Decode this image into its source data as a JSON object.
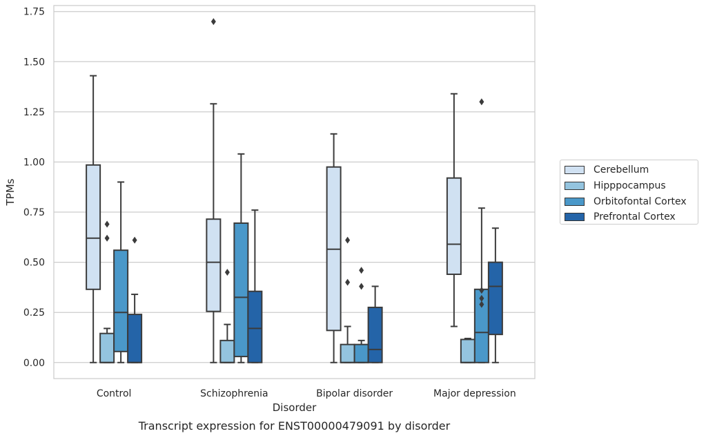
{
  "chart_data": {
    "type": "box",
    "title": "Transcript expression for ENST00000479091 by disorder",
    "xlabel": "Disorder",
    "ylabel": "TPMs",
    "ylim": [
      -0.08,
      1.78
    ],
    "y_ticks": [
      0.0,
      0.25,
      0.5,
      0.75,
      1.0,
      1.25,
      1.5,
      1.75
    ],
    "y_tick_labels": [
      "0.00",
      "0.25",
      "0.50",
      "0.75",
      "1.00",
      "1.25",
      "1.50",
      "1.75"
    ],
    "categories": [
      "Control",
      "Schizophrenia",
      "Bipolar disorder",
      "Major depression"
    ],
    "grid": true,
    "legend_position": "right",
    "series": [
      {
        "name": "Cerebellum",
        "color": "#d0e1f2",
        "boxes": [
          {
            "whisker_low": 0.0,
            "q1": 0.365,
            "median": 0.62,
            "q3": 0.985,
            "whisker_high": 1.43,
            "outliers": []
          },
          {
            "whisker_low": 0.0,
            "q1": 0.255,
            "median": 0.5,
            "q3": 0.715,
            "whisker_high": 1.29,
            "outliers": [
              1.7
            ]
          },
          {
            "whisker_low": 0.0,
            "q1": 0.16,
            "median": 0.565,
            "q3": 0.975,
            "whisker_high": 1.14,
            "outliers": []
          },
          {
            "whisker_low": 0.18,
            "q1": 0.44,
            "median": 0.59,
            "q3": 0.92,
            "whisker_high": 1.34,
            "outliers": []
          }
        ]
      },
      {
        "name": "Hipppocampus",
        "color": "#94c4df",
        "boxes": [
          {
            "whisker_low": 0.0,
            "q1": 0.0,
            "median": 0.0,
            "q3": 0.145,
            "whisker_high": 0.17,
            "outliers": [
              0.62,
              0.69
            ]
          },
          {
            "whisker_low": 0.0,
            "q1": 0.0,
            "median": 0.0,
            "q3": 0.11,
            "whisker_high": 0.19,
            "outliers": [
              0.45
            ]
          },
          {
            "whisker_low": 0.0,
            "q1": 0.0,
            "median": 0.0,
            "q3": 0.09,
            "whisker_high": 0.18,
            "outliers": [
              0.4,
              0.61
            ]
          },
          {
            "whisker_low": 0.0,
            "q1": 0.0,
            "median": 0.0,
            "q3": 0.115,
            "whisker_high": 0.12,
            "outliers": []
          }
        ]
      },
      {
        "name": "Orbitofontal Cortex",
        "color": "#4a98c9",
        "boxes": [
          {
            "whisker_low": 0.0,
            "q1": 0.055,
            "median": 0.25,
            "q3": 0.56,
            "whisker_high": 0.9,
            "outliers": []
          },
          {
            "whisker_low": 0.0,
            "q1": 0.03,
            "median": 0.325,
            "q3": 0.695,
            "whisker_high": 1.04,
            "outliers": []
          },
          {
            "whisker_low": 0.0,
            "q1": 0.0,
            "median": 0.0,
            "q3": 0.09,
            "whisker_high": 0.11,
            "outliers": [
              0.38,
              0.46
            ]
          },
          {
            "whisker_low": 0.0,
            "q1": 0.0,
            "median": 0.15,
            "q3": 0.365,
            "whisker_high": 0.77,
            "outliers": [
              0.29,
              0.32,
              0.36,
              1.3
            ]
          }
        ]
      },
      {
        "name": "Prefrontal Cortex",
        "color": "#2464a8",
        "boxes": [
          {
            "whisker_low": 0.0,
            "q1": 0.0,
            "median": 0.0,
            "q3": 0.24,
            "whisker_high": 0.34,
            "outliers": [
              0.61
            ]
          },
          {
            "whisker_low": 0.0,
            "q1": 0.0,
            "median": 0.17,
            "q3": 0.355,
            "whisker_high": 0.76,
            "outliers": []
          },
          {
            "whisker_low": 0.0,
            "q1": 0.0,
            "median": 0.065,
            "q3": 0.275,
            "whisker_high": 0.38,
            "outliers": []
          },
          {
            "whisker_low": 0.0,
            "q1": 0.14,
            "median": 0.38,
            "q3": 0.5,
            "whisker_high": 0.67,
            "outliers": []
          }
        ]
      }
    ]
  }
}
